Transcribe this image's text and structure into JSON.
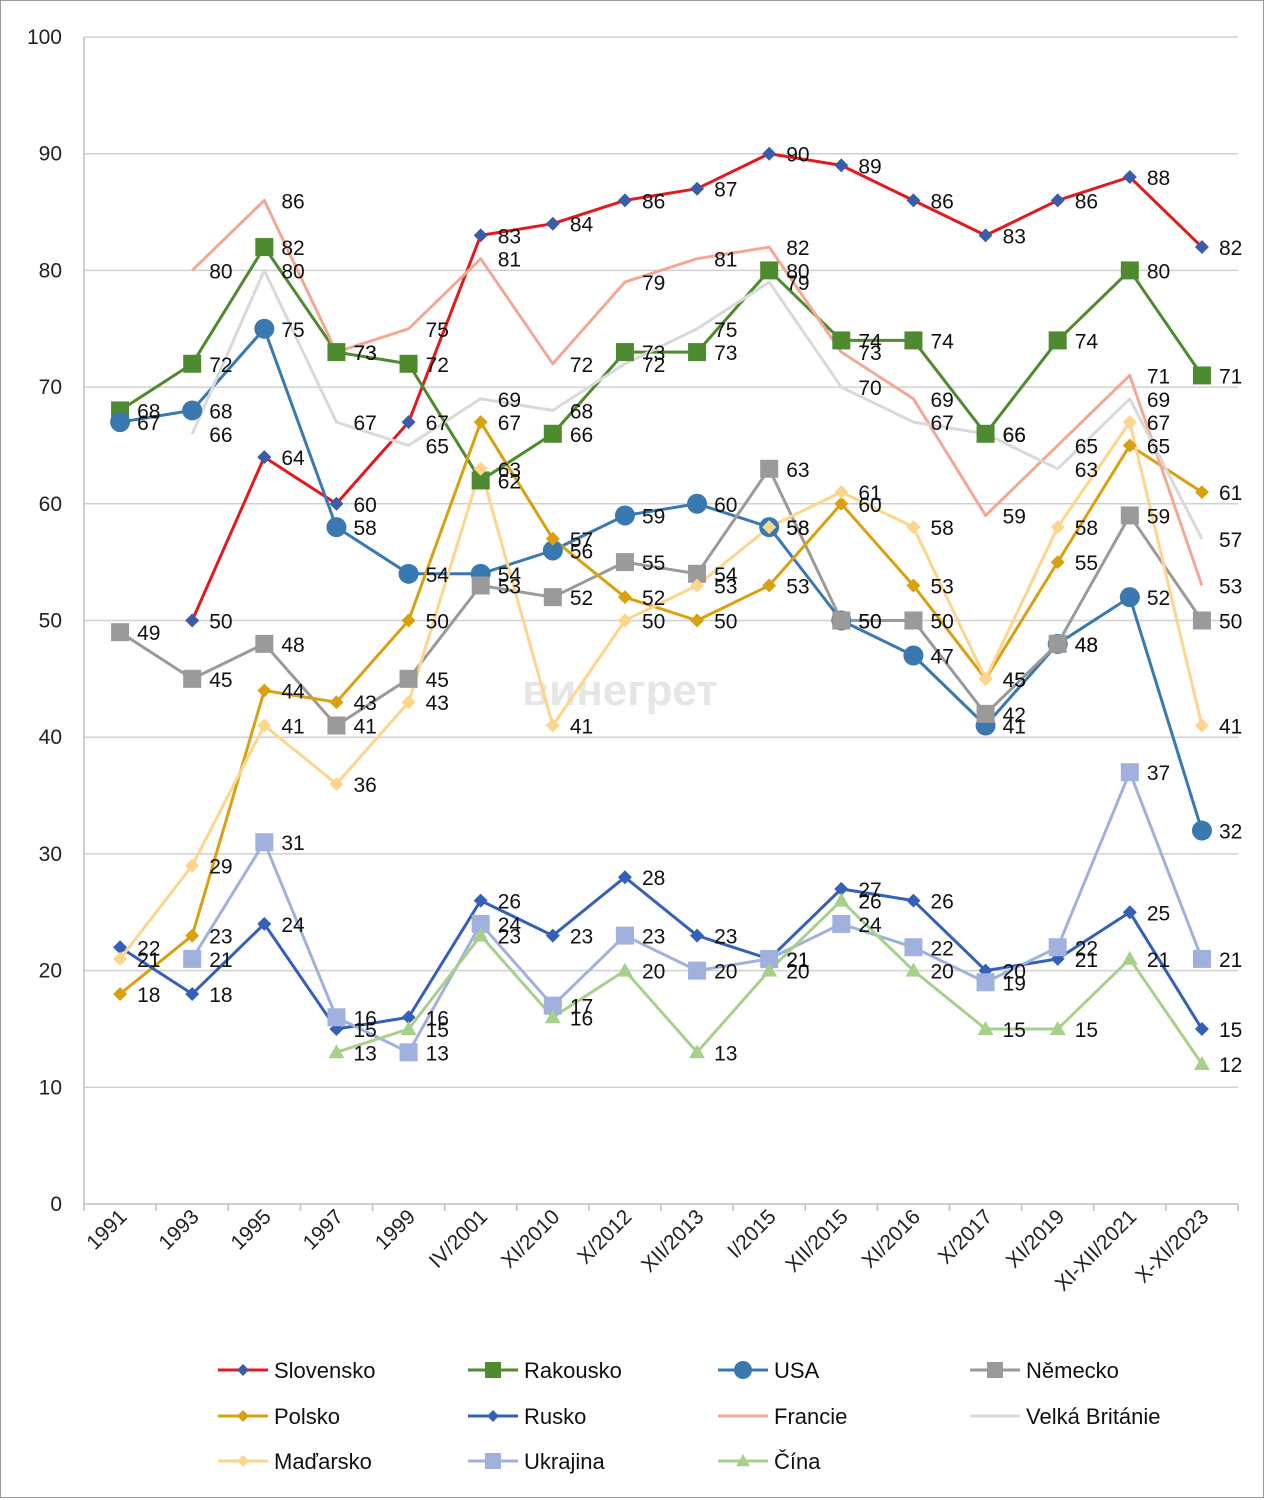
{
  "chart_data": {
    "type": "line",
    "title": "",
    "xlabel": "",
    "ylabel": "",
    "ylim": [
      0,
      100
    ],
    "yticks": [
      0,
      10,
      20,
      30,
      40,
      50,
      60,
      70,
      80,
      90,
      100
    ],
    "grid": "horizontal",
    "legend_position": "bottom",
    "categories": [
      "1991",
      "1993",
      "1995",
      "1997",
      "1999",
      "IV/2001",
      "XI/2010",
      "X/2012",
      "XII/2013",
      "I/2015",
      "XII/2015",
      "XI/2016",
      "X/2017",
      "XI/2019",
      "XI-XII/2021",
      "X-XI/2023"
    ],
    "series": [
      {
        "name": "Slovensko",
        "color": "#e31a1c",
        "marker": "diamond",
        "marker_color": "#3b5ca8",
        "values": [
          null,
          50,
          64,
          60,
          67,
          83,
          84,
          86,
          87,
          90,
          89,
          86,
          83,
          86,
          88,
          82
        ]
      },
      {
        "name": "Rakousko",
        "color": "#4e8a2f",
        "marker": "square",
        "marker_color": "#4e8a2f",
        "values": [
          68,
          72,
          82,
          73,
          72,
          62,
          66,
          73,
          73,
          80,
          74,
          74,
          66,
          74,
          80,
          71
        ]
      },
      {
        "name": "USA",
        "color": "#3a78b0",
        "marker": "circle",
        "marker_color": "#3a78b0",
        "values": [
          67,
          68,
          75,
          58,
          54,
          54,
          56,
          59,
          60,
          58,
          50,
          47,
          41,
          48,
          52,
          32
        ]
      },
      {
        "name": "Německo",
        "color": "#9a9a9a",
        "marker": "square",
        "marker_color": "#9a9a9a",
        "values": [
          49,
          45,
          48,
          41,
          45,
          53,
          52,
          55,
          54,
          63,
          50,
          50,
          42,
          48,
          59,
          50
        ]
      },
      {
        "name": "Polsko",
        "color": "#d9a110",
        "marker": "diamond",
        "marker_color": "#d9a110",
        "values": [
          18,
          23,
          44,
          43,
          50,
          67,
          57,
          52,
          50,
          53,
          60,
          53,
          45,
          55,
          65,
          61
        ]
      },
      {
        "name": "Rusko",
        "color": "#3560b8",
        "marker": "diamond",
        "marker_color": "#3560b8",
        "values": [
          22,
          18,
          24,
          15,
          16,
          26,
          23,
          28,
          23,
          21,
          27,
          26,
          20,
          21,
          25,
          15
        ]
      },
      {
        "name": "Francie",
        "color": "#f2a994",
        "marker": "none",
        "marker_color": "#f2a994",
        "values": [
          null,
          80,
          86,
          73,
          75,
          81,
          72,
          79,
          81,
          82,
          73,
          69,
          59,
          65,
          71,
          53
        ]
      },
      {
        "name": "Velká Británie",
        "color": "#d9d9d9",
        "marker": "none",
        "marker_color": "#d9d9d9",
        "values": [
          null,
          66,
          80,
          67,
          65,
          69,
          68,
          72,
          75,
          79,
          70,
          67,
          66,
          63,
          69,
          57
        ]
      },
      {
        "name": "Maďarsko",
        "color": "#fdd58c",
        "marker": "diamond",
        "marker_color": "#fdd58c",
        "values": [
          21,
          29,
          41,
          36,
          43,
          63,
          41,
          50,
          53,
          58,
          61,
          58,
          45,
          58,
          67,
          41
        ]
      },
      {
        "name": "Ukrajina",
        "color": "#9fb1dc",
        "marker": "square",
        "marker_color": "#9fb1dc",
        "values": [
          null,
          21,
          31,
          16,
          13,
          24,
          17,
          23,
          20,
          21,
          24,
          22,
          19,
          22,
          37,
          21
        ]
      },
      {
        "name": "Čína",
        "color": "#a8d08d",
        "marker": "triangle",
        "marker_color": "#a8d08d",
        "values": [
          null,
          null,
          null,
          13,
          15,
          23,
          16,
          20,
          13,
          20,
          26,
          20,
          15,
          15,
          21,
          12
        ]
      }
    ]
  },
  "watermark": "винегрет"
}
